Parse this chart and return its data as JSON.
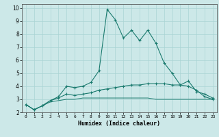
{
  "title": "",
  "xlabel": "Humidex (Indice chaleur)",
  "x": [
    0,
    1,
    2,
    3,
    4,
    5,
    6,
    7,
    8,
    9,
    10,
    11,
    12,
    13,
    14,
    15,
    16,
    17,
    18,
    19,
    20,
    21,
    22,
    23
  ],
  "line1": [
    2.6,
    2.2,
    2.5,
    2.9,
    3.2,
    4.0,
    3.9,
    4.0,
    4.3,
    5.2,
    9.9,
    9.1,
    7.7,
    8.3,
    7.5,
    8.3,
    7.3,
    5.8,
    5.0,
    4.1,
    4.4,
    3.6,
    3.4,
    3.1
  ],
  "line2": [
    2.6,
    2.2,
    2.5,
    2.9,
    3.1,
    3.4,
    3.3,
    3.4,
    3.5,
    3.7,
    3.8,
    3.9,
    4.0,
    4.1,
    4.1,
    4.2,
    4.2,
    4.2,
    4.1,
    4.1,
    4.0,
    3.7,
    3.2,
    3.0
  ],
  "line3": [
    2.6,
    2.2,
    2.5,
    2.8,
    2.9,
    3.0,
    3.0,
    3.1,
    3.1,
    3.1,
    3.1,
    3.1,
    3.1,
    3.1,
    3.1,
    3.1,
    3.0,
    3.0,
    3.0,
    3.0,
    3.0,
    3.0,
    3.0,
    3.0
  ],
  "line_color": "#1a7a6e",
  "bg_color": "#cce8e8",
  "grid_color": "#aad4d4",
  "ylim": [
    2.0,
    10.3
  ],
  "xlim": [
    -0.5,
    23.5
  ],
  "yticks": [
    2,
    3,
    4,
    5,
    6,
    7,
    8,
    9,
    10
  ],
  "xticks": [
    0,
    1,
    2,
    3,
    4,
    5,
    6,
    7,
    8,
    9,
    10,
    11,
    12,
    13,
    14,
    15,
    16,
    17,
    18,
    19,
    20,
    21,
    22,
    23
  ]
}
